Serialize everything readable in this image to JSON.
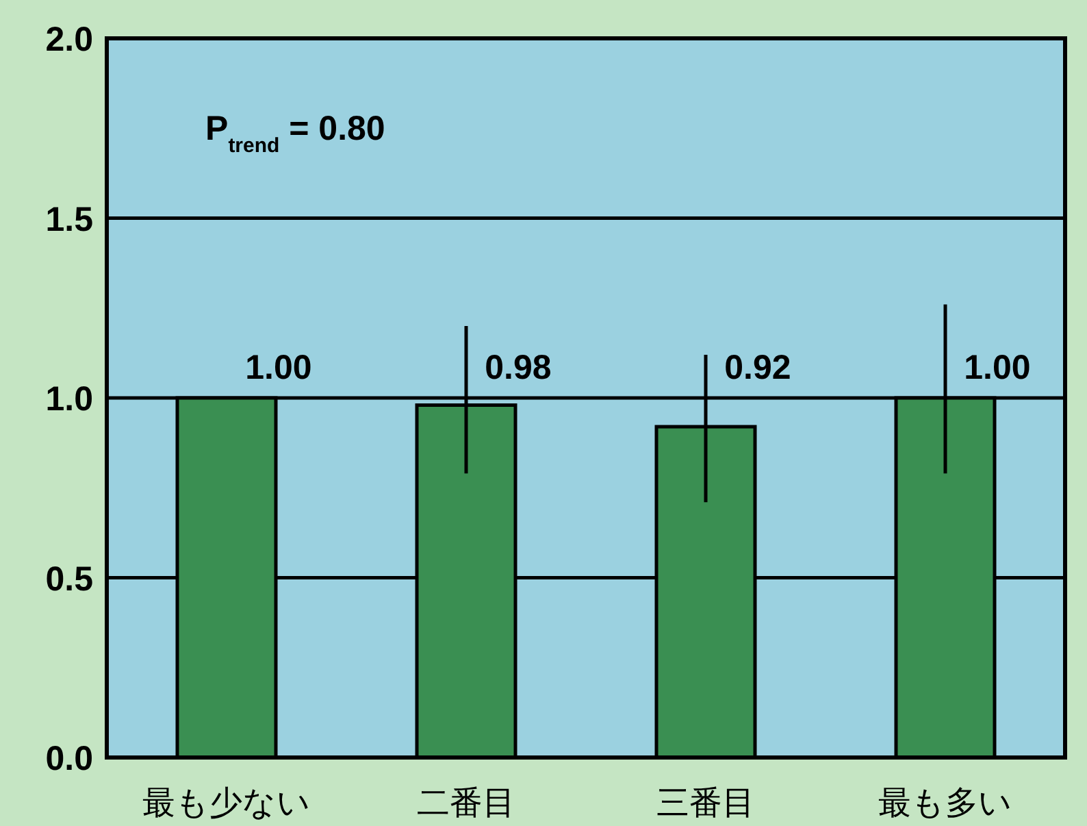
{
  "chart_data": {
    "type": "bar",
    "categories": [
      "最も少ない",
      "二番目",
      "三番目",
      "最も多い"
    ],
    "values": [
      1.0,
      0.98,
      0.92,
      1.0
    ],
    "errors": [
      null,
      [
        0.79,
        1.2
      ],
      [
        0.71,
        1.12
      ],
      [
        0.79,
        1.26
      ]
    ],
    "color": "#3a8f52",
    "value_labels": [
      "1.00",
      "0.98",
      "0.92",
      "1.00"
    ],
    "ylim": [
      0,
      2
    ],
    "yticks": [
      {
        "value": 0,
        "label": "0.0"
      },
      {
        "value": 0.5,
        "label": "0.5"
      },
      {
        "value": 1,
        "label": "1.0"
      },
      {
        "value": 1.5,
        "label": "1.5"
      },
      {
        "value": 2,
        "label": "2.0"
      }
    ],
    "grid": "y",
    "annotations": [
      "P$_{trend}$ = 0.80"
    ]
  }
}
